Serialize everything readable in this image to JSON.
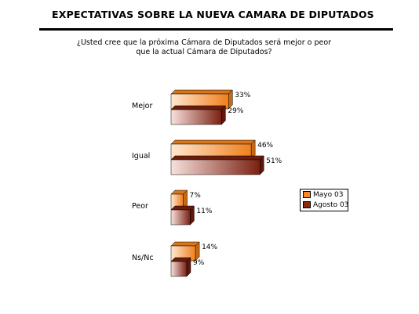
{
  "header": {
    "title": "EXPECTATIVAS SOBRE LA NUEVA CAMARA DE DIPUTADOS",
    "question_line1": "¿Usted cree que la próxima Cámara de Diputados será mejor o peor",
    "question_line2": "que la actual Cámara de Diputados?"
  },
  "chart_data": {
    "type": "bar",
    "orientation": "horizontal",
    "style": "3d",
    "categories": [
      "Mejor",
      "Igual",
      "Peor",
      "Ns/Nc"
    ],
    "series": [
      {
        "name": "Mayo 03",
        "values": [
          33,
          46,
          7,
          14
        ],
        "labels": [
          "33%",
          "46%",
          "7%",
          "14%"
        ],
        "color": "#f5892a"
      },
      {
        "name": "Agosto 03",
        "values": [
          29,
          51,
          11,
          9
        ],
        "labels": [
          "29%",
          "51%",
          "11%",
          "9%"
        ],
        "color": "#8b2a12"
      }
    ],
    "unit": "%",
    "axis_visible": false,
    "legend_position": "right"
  }
}
